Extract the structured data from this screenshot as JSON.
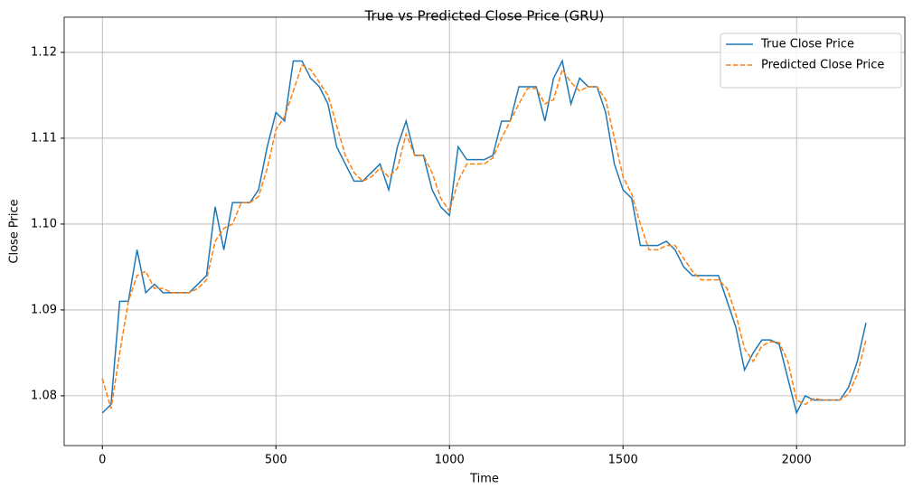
{
  "chart_data": {
    "type": "line",
    "title": "True vs Predicted Close Price (GRU)",
    "x_label": "Time",
    "y_label": "Close Price",
    "x": [
      0,
      25,
      50,
      75,
      100,
      125,
      150,
      175,
      200,
      225,
      250,
      275,
      300,
      325,
      350,
      375,
      400,
      425,
      450,
      475,
      500,
      525,
      550,
      575,
      600,
      625,
      650,
      675,
      700,
      725,
      750,
      775,
      800,
      825,
      850,
      875,
      900,
      925,
      950,
      975,
      1000,
      1025,
      1050,
      1075,
      1100,
      1125,
      1150,
      1175,
      1200,
      1225,
      1250,
      1275,
      1300,
      1325,
      1350,
      1375,
      1400,
      1425,
      1450,
      1475,
      1500,
      1525,
      1550,
      1575,
      1600,
      1625,
      1650,
      1675,
      1700,
      1725,
      1750,
      1775,
      1800,
      1825,
      1850,
      1875,
      1900,
      1925,
      1950,
      1975,
      2000,
      2025,
      2050,
      2075,
      2100,
      2125,
      2150,
      2175,
      2200
    ],
    "series": [
      {
        "name": "True Close Price",
        "color": "#1f77b4",
        "linestyle": "solid",
        "values": [
          1.078,
          1.079,
          1.091,
          1.091,
          1.097,
          1.092,
          1.093,
          1.092,
          1.092,
          1.092,
          1.092,
          1.093,
          1.094,
          1.102,
          1.097,
          1.1025,
          1.1025,
          1.1025,
          1.104,
          1.109,
          1.113,
          1.112,
          1.119,
          1.119,
          1.117,
          1.116,
          1.114,
          1.109,
          1.107,
          1.105,
          1.105,
          1.106,
          1.107,
          1.104,
          1.109,
          1.112,
          1.108,
          1.108,
          1.104,
          1.102,
          1.101,
          1.109,
          1.1075,
          1.1075,
          1.1075,
          1.108,
          1.112,
          1.112,
          1.116,
          1.116,
          1.116,
          1.112,
          1.117,
          1.119,
          1.114,
          1.117,
          1.116,
          1.116,
          1.113,
          1.107,
          1.104,
          1.103,
          1.0975,
          1.0975,
          1.0975,
          1.098,
          1.097,
          1.095,
          1.094,
          1.094,
          1.094,
          1.094,
          1.091,
          1.088,
          1.083,
          1.085,
          1.0865,
          1.0865,
          1.086,
          1.082,
          1.078,
          1.08,
          1.0795,
          1.0795,
          1.0795,
          1.0795,
          1.081,
          1.084,
          1.0885
        ]
      },
      {
        "name": "Predicted Close Price",
        "color": "#ff7f0e",
        "linestyle": "dashed",
        "values": [
          1.082,
          1.0785,
          1.085,
          1.091,
          1.094,
          1.0945,
          1.0925,
          1.0925,
          1.092,
          1.092,
          1.092,
          1.0925,
          1.0935,
          1.098,
          1.0995,
          1.1,
          1.1025,
          1.1025,
          1.1032,
          1.1065,
          1.111,
          1.1125,
          1.1155,
          1.1185,
          1.118,
          1.1165,
          1.115,
          1.1115,
          1.108,
          1.106,
          1.105,
          1.1055,
          1.1065,
          1.1055,
          1.1065,
          1.1105,
          1.108,
          1.108,
          1.106,
          1.103,
          1.1015,
          1.105,
          1.107,
          1.107,
          1.107,
          1.1077,
          1.11,
          1.112,
          1.114,
          1.1158,
          1.1158,
          1.114,
          1.1145,
          1.118,
          1.1165,
          1.1155,
          1.116,
          1.116,
          1.1145,
          1.11,
          1.1055,
          1.1035,
          1.1,
          1.097,
          1.097,
          1.0975,
          1.0975,
          1.096,
          1.0945,
          1.0935,
          1.0935,
          1.0935,
          1.0925,
          1.0895,
          1.0855,
          1.084,
          1.0858,
          1.0863,
          1.0862,
          1.084,
          1.0795,
          1.079,
          1.0797,
          1.0795,
          1.0795,
          1.0795,
          1.0802,
          1.0825,
          1.0865
        ]
      }
    ],
    "xlim": [
      -110,
      2312
    ],
    "ylim": [
      1.0742,
      1.1241
    ],
    "xticks": [
      0,
      500,
      1000,
      1500,
      2000
    ],
    "yticks": [
      1.08,
      1.09,
      {
        "value": 1.1,
        "label": "1.10"
      },
      1.11,
      1.12
    ],
    "grid": true,
    "legend": "upper right"
  }
}
